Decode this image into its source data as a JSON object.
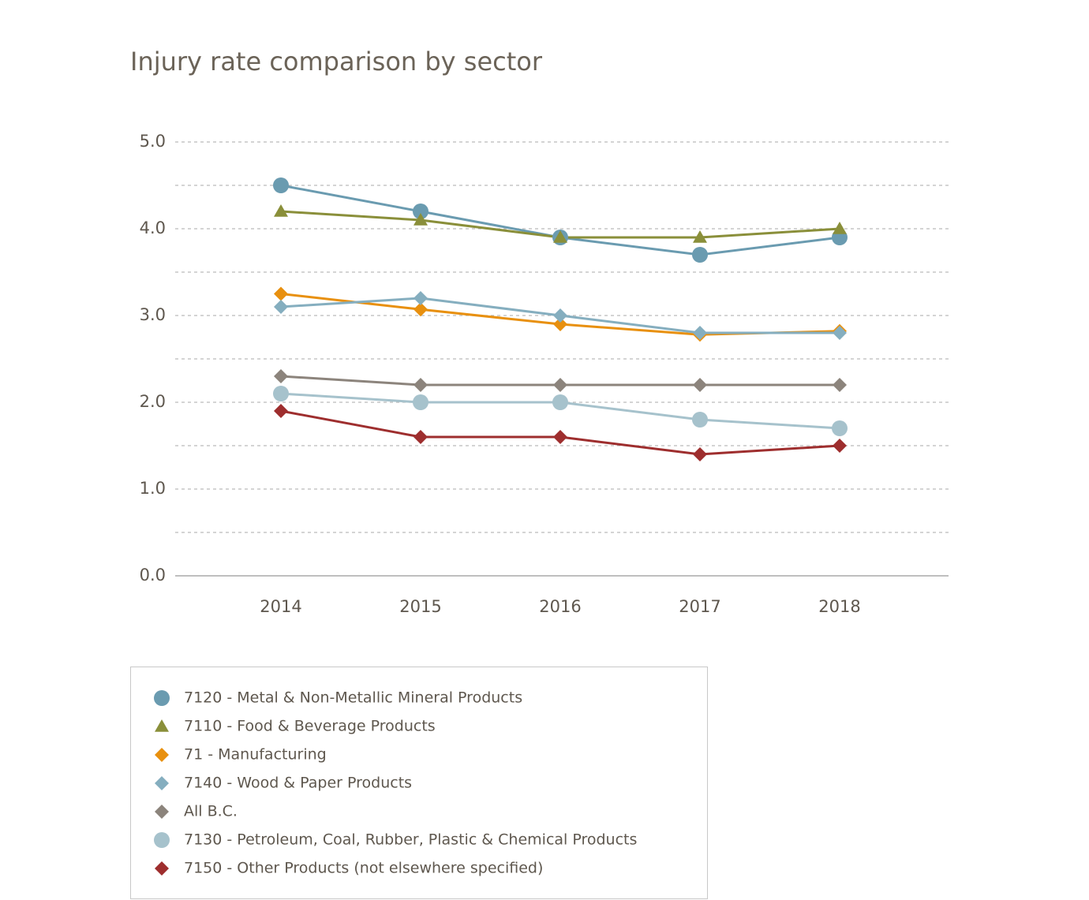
{
  "chart_data": {
    "type": "line",
    "title": "Injury rate comparison by sector",
    "categories": [
      "2014",
      "2015",
      "2016",
      "2017",
      "2018"
    ],
    "ylim": [
      0,
      5
    ],
    "yticks": [
      {
        "value": 0,
        "label": "0.0"
      },
      {
        "value": 1,
        "label": "1.0"
      },
      {
        "value": 2,
        "label": "2.0"
      },
      {
        "value": 3,
        "label": "3.0"
      },
      {
        "value": 4,
        "label": "4.0"
      },
      {
        "value": 5,
        "label": "5.0"
      }
    ],
    "minor_gridlines": [
      0.5,
      1.5,
      2.5,
      3.5,
      4.5
    ],
    "grid": true,
    "series": [
      {
        "name": "7120 - Metal & Non-Metallic Mineral Products",
        "color": "#6a9bb0",
        "marker": "circle",
        "values": [
          4.5,
          4.2,
          3.9,
          3.7,
          3.9
        ]
      },
      {
        "name": "7110 - Food & Beverage Products",
        "color": "#8a8f3a",
        "marker": "triangle",
        "values": [
          4.2,
          4.1,
          3.9,
          3.9,
          4.0
        ]
      },
      {
        "name": "71 - Manufacturing",
        "color": "#e8900f",
        "marker": "diamond",
        "values": [
          3.25,
          3.07,
          2.9,
          2.78,
          2.82
        ]
      },
      {
        "name": "7140 - Wood & Paper Products",
        "color": "#85aebf",
        "marker": "diamond",
        "values": [
          3.1,
          3.2,
          3.0,
          2.8,
          2.8
        ]
      },
      {
        "name": "All B.C.",
        "color": "#8c847c",
        "marker": "diamond",
        "values": [
          2.3,
          2.2,
          2.2,
          2.2,
          2.2
        ]
      },
      {
        "name": "7130 - Petroleum, Coal, Rubber, Plastic & Chemical Products",
        "color": "#a6c2cc",
        "marker": "circle",
        "values": [
          2.1,
          2.0,
          2.0,
          1.8,
          1.7
        ]
      },
      {
        "name": "7150 - Other Products (not elsewhere specified)",
        "color": "#9e2e2e",
        "marker": "diamond",
        "values": [
          1.9,
          1.6,
          1.6,
          1.4,
          1.5
        ]
      }
    ]
  }
}
